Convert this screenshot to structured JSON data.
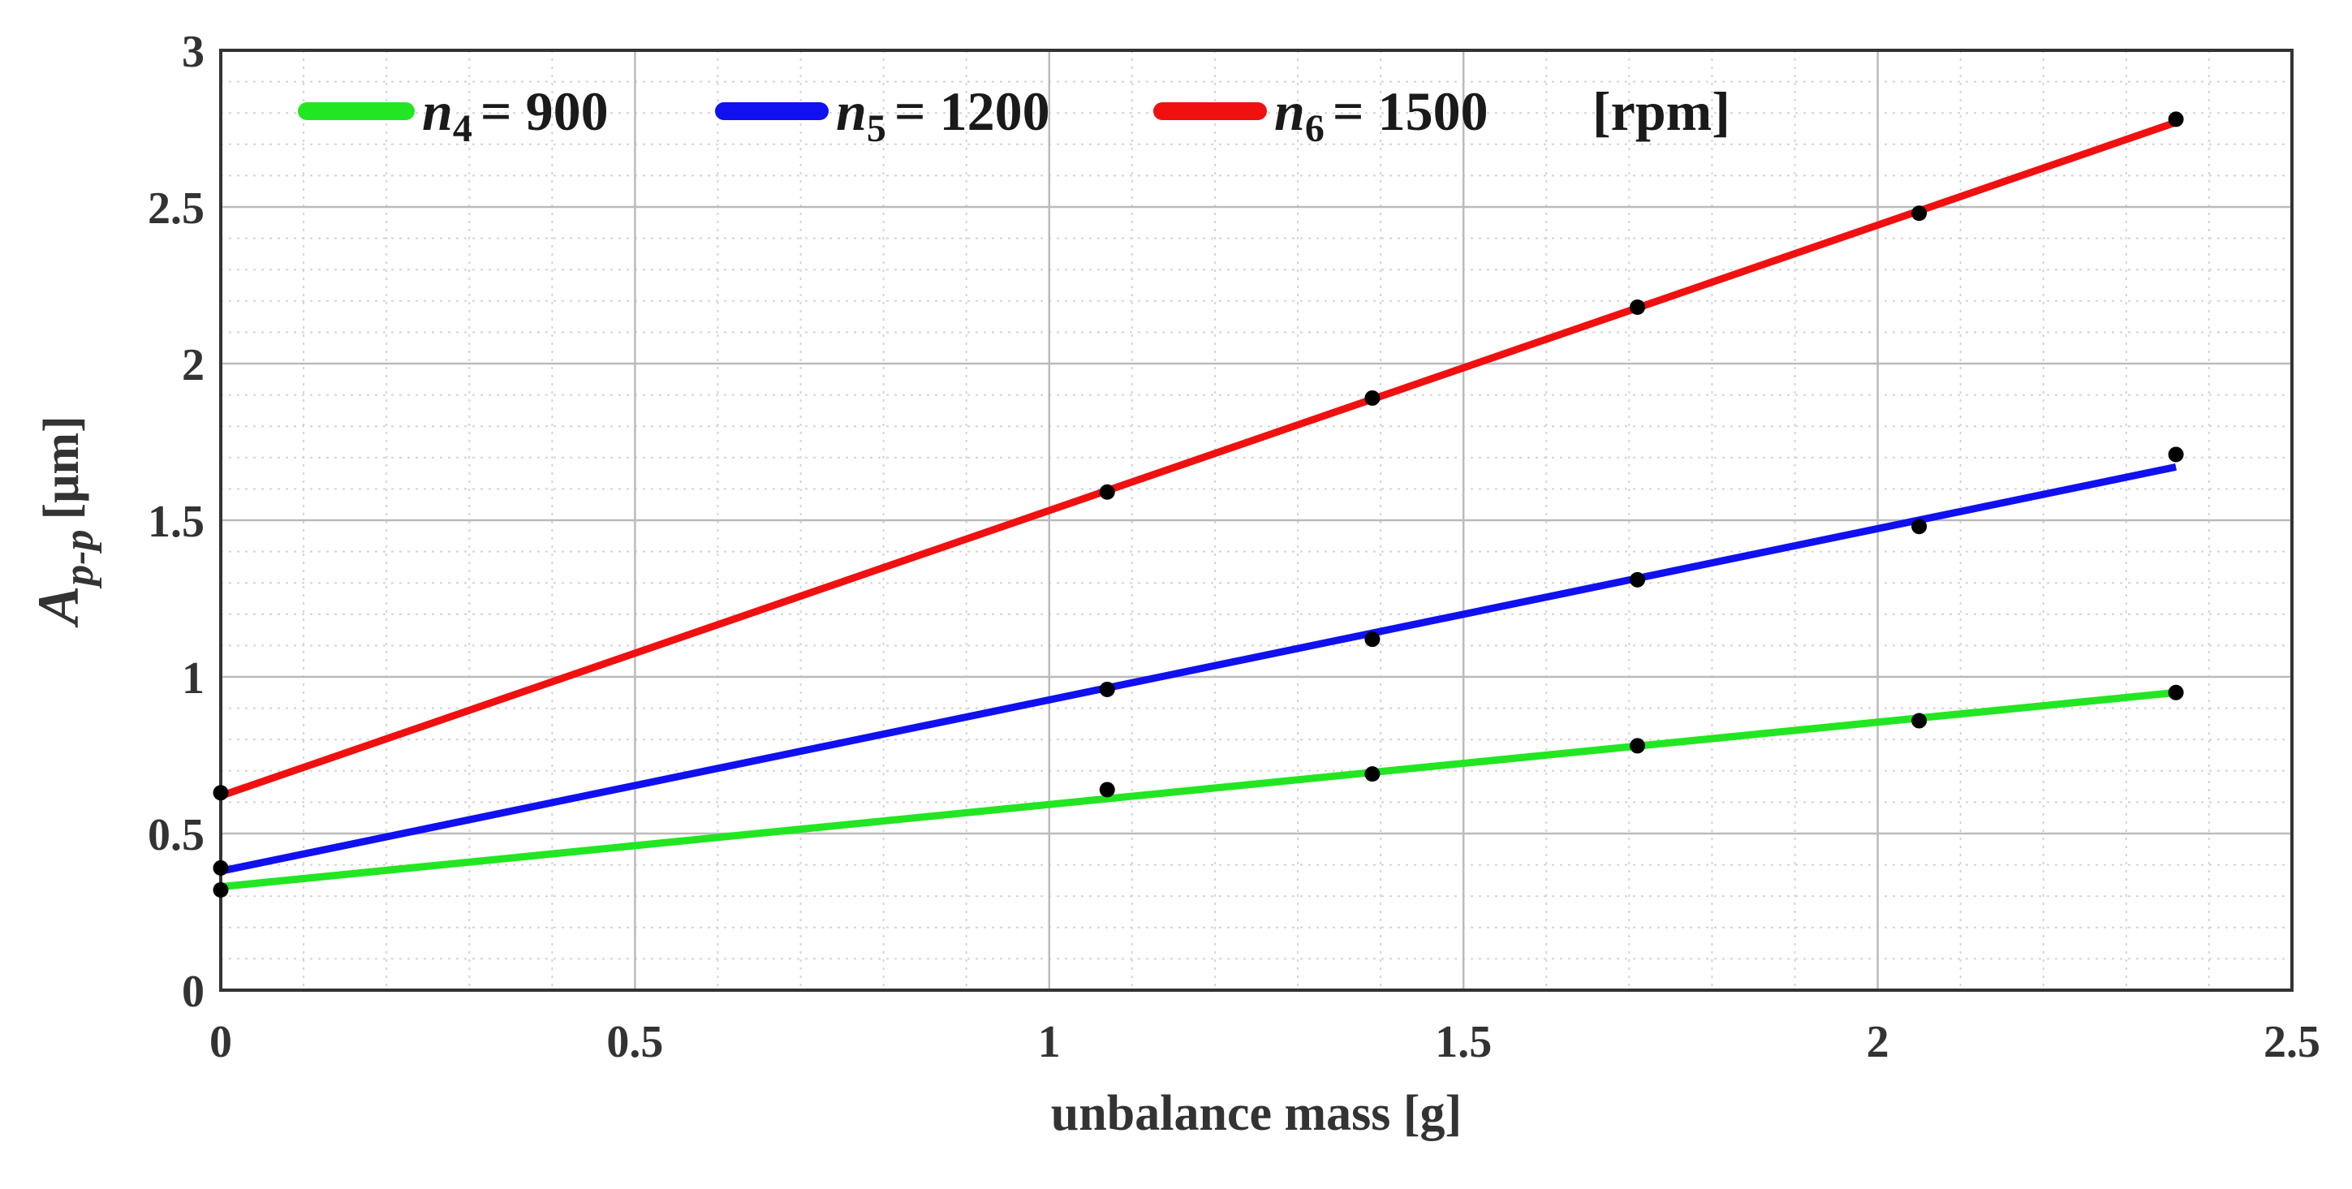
{
  "chart_data": {
    "type": "line",
    "title": "",
    "xlabel": "unbalance mass [g]",
    "ylabel": {
      "main": "A",
      "subscript": "p-p",
      "unit": "[μm]"
    },
    "xlim": [
      0,
      2.5
    ],
    "ylim": [
      0,
      3
    ],
    "x_ticks": [
      0,
      0.5,
      1,
      1.5,
      2,
      2.5
    ],
    "x_tick_labels": [
      "0",
      "0.5",
      "1",
      "1.5",
      "2",
      "2.5"
    ],
    "y_ticks": [
      0,
      0.5,
      1,
      1.5,
      2,
      2.5,
      3
    ],
    "y_tick_labels": [
      "0",
      "0.5",
      "1",
      "1.5",
      "2",
      "2.5",
      "3"
    ],
    "grid": true,
    "minor_grid": true,
    "legend_position": "top",
    "legend_unit": "[rpm]",
    "x": [
      0,
      1.07,
      1.39,
      1.71,
      2.05,
      2.36
    ],
    "series": [
      {
        "name": "n4 = 900",
        "symbol": "n",
        "subscript": "4",
        "equals_value": "= 900",
        "color": "#22e622",
        "measured": [
          0.32,
          0.64,
          0.69,
          0.78,
          0.86,
          0.95
        ],
        "fit": [
          0.33,
          0.95
        ]
      },
      {
        "name": "n5 = 1200",
        "symbol": "n",
        "subscript": "5",
        "equals_value": "= 1200",
        "color": "#1010f0",
        "measured": [
          0.39,
          0.96,
          1.12,
          1.31,
          1.48,
          1.71
        ],
        "fit": [
          0.38,
          1.67
        ]
      },
      {
        "name": "n6 = 1500",
        "symbol": "n",
        "subscript": "6",
        "equals_value": "= 1500",
        "color": "#f01010",
        "measured": [
          0.63,
          1.59,
          1.89,
          2.18,
          2.48,
          2.78
        ],
        "fit": [
          0.62,
          2.77
        ]
      }
    ],
    "marker_color": "#000000"
  }
}
